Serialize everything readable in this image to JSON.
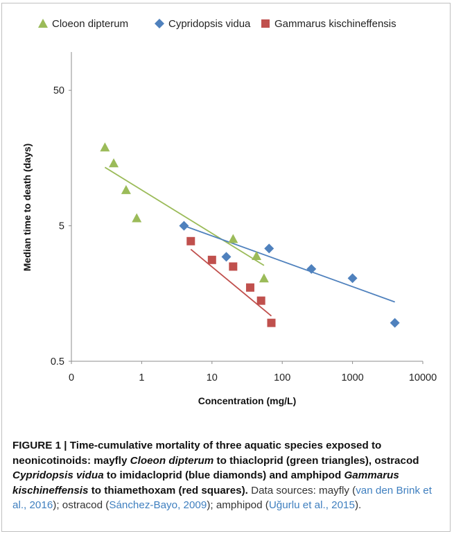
{
  "chart_data": {
    "type": "scatter",
    "title": "",
    "xlabel": "Concentration (mg/L)",
    "ylabel": "Median time to death (days)",
    "x_scale": "log",
    "y_scale": "log",
    "x_ticks": [
      "0",
      "1",
      "10",
      "100",
      "1000",
      "10000"
    ],
    "y_ticks": [
      "0.5",
      "5",
      "50"
    ],
    "xlim": [
      0.1,
      10000
    ],
    "ylim": [
      0.5,
      150
    ],
    "legend_position": "top",
    "series": [
      {
        "name": "Cloeon dipterum",
        "marker": "triangle",
        "color": "#9bbb59",
        "points": [
          [
            0.3,
            19
          ],
          [
            0.4,
            14.5
          ],
          [
            0.6,
            9.2
          ],
          [
            0.85,
            5.7
          ],
          [
            20,
            4.0
          ],
          [
            43,
            3.0
          ],
          [
            55,
            2.05
          ]
        ],
        "trend": [
          [
            0.3,
            13.5
          ],
          [
            55,
            2.55
          ]
        ]
      },
      {
        "name": "Cypridopsis vidua",
        "marker": "diamond",
        "color": "#4f81bd",
        "points": [
          [
            4,
            5.0
          ],
          [
            16,
            2.95
          ],
          [
            65,
            3.4
          ],
          [
            260,
            2.4
          ],
          [
            1000,
            2.05
          ],
          [
            4000,
            0.96
          ]
        ],
        "trend": [
          [
            4,
            5.0
          ],
          [
            4000,
            1.37
          ]
        ]
      },
      {
        "name": "Gammarus kischineffensis",
        "marker": "square",
        "color": "#c0504d",
        "points": [
          [
            5,
            3.85
          ],
          [
            10,
            2.8
          ],
          [
            20,
            2.5
          ],
          [
            35,
            1.75
          ],
          [
            50,
            1.4
          ],
          [
            70,
            0.96
          ]
        ],
        "trend": [
          [
            5,
            3.35
          ],
          [
            70,
            1.08
          ]
        ]
      }
    ]
  },
  "caption": {
    "figure_label": "FIGURE 1 | Time-cumulative mortality of three aquatic species exposed to neonicotinoids: mayfly",
    "species_1": "Cloeon dipterum",
    "to_1": "to thiacloprid (green triangles), ostracod",
    "species_2": "Cypridopsis vidua",
    "to_2": "to imidacloprid (blue diamonds) and amphipod",
    "species_3": "Gammarus kischineffensis",
    "to_3": "to thiamethoxam (red squares).",
    "sources_prefix": "Data sources: mayfly (",
    "ref_1": "van den Brink et al., 2016",
    "sources_mid_1": "); ostracod (",
    "ref_2": "Sánchez-Bayo, 2009",
    "sources_mid_2": "); amphipod (",
    "ref_3": "Uğurlu et al., 2015",
    "sources_suffix": ")."
  }
}
